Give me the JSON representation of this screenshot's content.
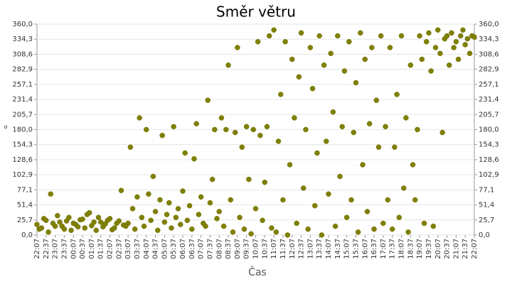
{
  "chart_data": {
    "type": "scatter",
    "title": "Směr větru",
    "x_label": "Čas",
    "y_label": "°",
    "color": "#808000",
    "grid": true,
    "xlim": [
      0,
      24
    ],
    "xticks": [
      {
        "value": 0,
        "label": "22:07"
      },
      {
        "value": 0.5,
        "label": "22:37"
      },
      {
        "value": 1,
        "label": "23:07"
      },
      {
        "value": 1.5,
        "label": "23:37"
      },
      {
        "value": 2,
        "label": "00:07"
      },
      {
        "value": 2.5,
        "label": "00:37"
      },
      {
        "value": 3,
        "label": "01:07"
      },
      {
        "value": 3.5,
        "label": "01:37"
      },
      {
        "value": 4,
        "label": "02:07"
      },
      {
        "value": 4.5,
        "label": "02:37"
      },
      {
        "value": 5,
        "label": "03:07"
      },
      {
        "value": 5.5,
        "label": "03:37"
      },
      {
        "value": 6,
        "label": "04:07"
      },
      {
        "value": 6.5,
        "label": "04:37"
      },
      {
        "value": 7,
        "label": "05:07"
      },
      {
        "value": 7.5,
        "label": "05:37"
      },
      {
        "value": 8,
        "label": "06:07"
      },
      {
        "value": 8.5,
        "label": "06:37"
      },
      {
        "value": 9,
        "label": "07:07"
      },
      {
        "value": 9.5,
        "label": "07:37"
      },
      {
        "value": 10,
        "label": "08:07"
      },
      {
        "value": 10.5,
        "label": "08:37"
      },
      {
        "value": 11,
        "label": "09:07"
      },
      {
        "value": 11.5,
        "label": "09:37"
      },
      {
        "value": 12,
        "label": "10:07"
      },
      {
        "value": 12.5,
        "label": "10:37"
      },
      {
        "value": 13,
        "label": "11:07"
      },
      {
        "value": 13.5,
        "label": "11:37"
      },
      {
        "value": 14,
        "label": "12:07"
      },
      {
        "value": 14.5,
        "label": "12:37"
      },
      {
        "value": 15,
        "label": "13:07"
      },
      {
        "value": 15.5,
        "label": "13:37"
      },
      {
        "value": 16,
        "label": "14:07"
      },
      {
        "value": 16.5,
        "label": "14:37"
      },
      {
        "value": 17,
        "label": "15:07"
      },
      {
        "value": 17.5,
        "label": "15:37"
      },
      {
        "value": 18,
        "label": "16:07"
      },
      {
        "value": 18.5,
        "label": "16:37"
      },
      {
        "value": 19,
        "label": "17:07"
      },
      {
        "value": 19.5,
        "label": "17:37"
      },
      {
        "value": 20,
        "label": "18:07"
      },
      {
        "value": 20.5,
        "label": "18:37"
      },
      {
        "value": 21,
        "label": "19:07"
      },
      {
        "value": 21.5,
        "label": "19:37"
      },
      {
        "value": 22,
        "label": "20:07"
      },
      {
        "value": 22.5,
        "label": "20:37"
      },
      {
        "value": 23,
        "label": "21:07"
      },
      {
        "value": 23.5,
        "label": "21:37"
      },
      {
        "value": 24,
        "label": "22:07"
      }
    ],
    "ylim": [
      0,
      360
    ],
    "yticks": [
      {
        "value": 0,
        "label": "0,0"
      },
      {
        "value": 25.7,
        "label": "25,7"
      },
      {
        "value": 51.4,
        "label": "51,4"
      },
      {
        "value": 77.1,
        "label": "77,1"
      },
      {
        "value": 102.9,
        "label": "102,9"
      },
      {
        "value": 128.6,
        "label": "128,6"
      },
      {
        "value": 154.3,
        "label": "154,3"
      },
      {
        "value": 180,
        "label": "180,0"
      },
      {
        "value": 205.7,
        "label": "205,7"
      },
      {
        "value": 231.4,
        "label": "231,4"
      },
      {
        "value": 257.1,
        "label": "257,1"
      },
      {
        "value": 282.9,
        "label": "282,9"
      },
      {
        "value": 308.6,
        "label": "308,6"
      },
      {
        "value": 334.3,
        "label": "334,3"
      },
      {
        "value": 360,
        "label": "360,0"
      }
    ],
    "x": [
      0,
      0.125,
      0.25,
      0.375,
      0.5,
      0.625,
      0.75,
      0.875,
      1,
      1.125,
      1.25,
      1.375,
      1.5,
      1.625,
      1.75,
      1.875,
      2,
      2.125,
      2.25,
      2.375,
      2.5,
      2.625,
      2.75,
      2.875,
      3,
      3.125,
      3.25,
      3.375,
      3.5,
      3.625,
      3.75,
      3.875,
      4,
      4.125,
      4.25,
      4.375,
      4.5,
      4.625,
      4.75,
      4.875,
      5,
      5.125,
      5.25,
      5.375,
      5.5,
      5.625,
      5.75,
      5.875,
      6,
      6.125,
      6.25,
      6.375,
      6.5,
      6.625,
      6.75,
      6.875,
      7,
      7.125,
      7.25,
      7.375,
      7.5,
      7.625,
      7.75,
      7.875,
      8,
      8.125,
      8.25,
      8.375,
      8.5,
      8.625,
      8.75,
      8.875,
      9,
      9.125,
      9.25,
      9.375,
      9.5,
      9.625,
      9.75,
      9.875,
      10,
      10.125,
      10.25,
      10.375,
      10.5,
      10.625,
      10.75,
      10.875,
      11,
      11.125,
      11.25,
      11.375,
      11.5,
      11.625,
      11.75,
      11.875,
      12,
      12.125,
      12.25,
      12.375,
      12.5,
      12.625,
      12.75,
      12.875,
      13,
      13.125,
      13.25,
      13.375,
      13.5,
      13.625,
      13.75,
      13.875,
      14,
      14.125,
      14.25,
      14.375,
      14.5,
      14.625,
      14.75,
      14.875,
      15,
      15.125,
      15.25,
      15.375,
      15.5,
      15.625,
      15.75,
      15.875,
      16,
      16.125,
      16.25,
      16.375,
      16.5,
      16.625,
      16.75,
      16.875,
      17,
      17.125,
      17.25,
      17.375,
      17.5,
      17.625,
      17.75,
      17.875,
      18,
      18.125,
      18.25,
      18.375,
      18.5,
      18.625,
      18.75,
      18.875,
      19,
      19.125,
      19.25,
      19.375,
      19.5,
      19.625,
      19.75,
      19.875,
      20,
      20.125,
      20.25,
      20.375,
      20.5,
      20.625,
      20.75,
      20.875,
      21,
      21.125,
      21.25,
      21.375,
      21.5,
      21.625,
      21.75,
      21.875,
      22,
      22.125,
      22.25,
      22.375,
      22.5,
      22.625,
      22.75,
      22.875,
      23,
      23.125,
      23.25,
      23.375,
      23.5,
      23.625,
      23.75,
      23.875,
      24
    ],
    "values": [
      18,
      10,
      12,
      28,
      25,
      5,
      70,
      20,
      15,
      33,
      22,
      15,
      10,
      24,
      30,
      8,
      20,
      18,
      14,
      26,
      27,
      12,
      35,
      38,
      16,
      22,
      8,
      30,
      22,
      14,
      19,
      25,
      28,
      9,
      12,
      20,
      24,
      76,
      17,
      15,
      20,
      150,
      45,
      10,
      65,
      200,
      30,
      15,
      180,
      70,
      25,
      100,
      40,
      8,
      60,
      170,
      22,
      35,
      55,
      12,
      185,
      30,
      45,
      18,
      75,
      140,
      25,
      50,
      10,
      130,
      190,
      35,
      65,
      20,
      15,
      230,
      55,
      95,
      180,
      28,
      40,
      200,
      15,
      180,
      290,
      60,
      5,
      175,
      320,
      30,
      150,
      10,
      185,
      95,
      2,
      180,
      45,
      330,
      170,
      25,
      90,
      185,
      340,
      12,
      350,
      5,
      160,
      240,
      60,
      330,
      0,
      120,
      300,
      200,
      20,
      270,
      345,
      80,
      180,
      10,
      320,
      250,
      50,
      140,
      340,
      0,
      290,
      160,
      70,
      310,
      210,
      15,
      340,
      100,
      185,
      280,
      30,
      330,
      60,
      175,
      260,
      5,
      345,
      120,
      300,
      40,
      190,
      320,
      10,
      230,
      150,
      340,
      20,
      185,
      60,
      320,
      10,
      150,
      240,
      30,
      340,
      80,
      200,
      5,
      290,
      120,
      60,
      180,
      340,
      300,
      20,
      330,
      345,
      280,
      15,
      320,
      350,
      310,
      175,
      335,
      340,
      290,
      345,
      320,
      330,
      300,
      340,
      350,
      325,
      335,
      310,
      340,
      338
    ]
  }
}
